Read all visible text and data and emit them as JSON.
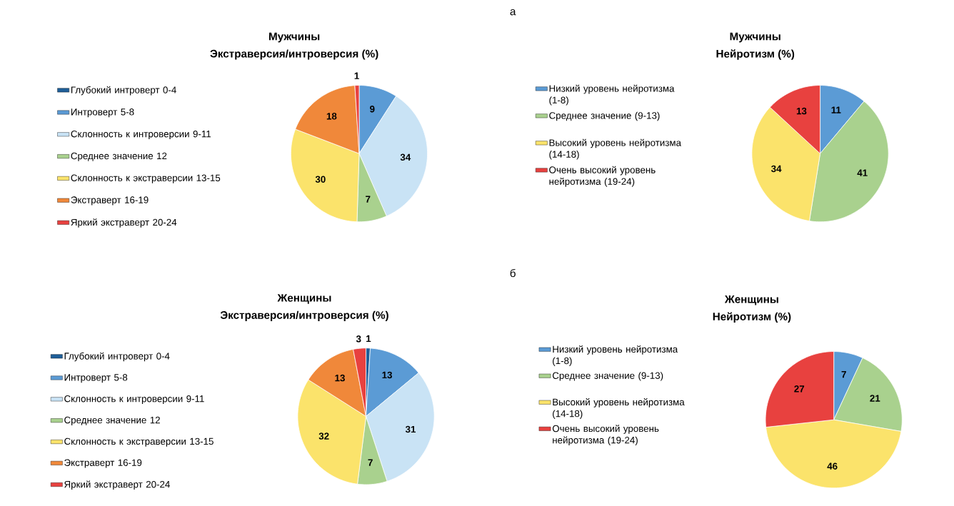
{
  "chart_data": [
    {
      "type": "pie",
      "title": "Мужчины",
      "subtitle": "Экстраверсия/интроверсия (%)",
      "annotations": [
        "а"
      ],
      "legend": "left",
      "categories": [
        "Глубокий интроверт 0-4",
        "Интроверт 5-8",
        "Склонность к интроверсии 9-11",
        "Среднее значение 12",
        "Склонность к экстраверсии 13-15",
        "Экстраверт 16-19",
        "Яркий экстраверт 20-24"
      ],
      "values": [
        null,
        9,
        34,
        7,
        30,
        18,
        1
      ],
      "value_labels": [
        null,
        "9",
        "34",
        "7",
        "30",
        "18",
        "1"
      ],
      "colors": [
        "#1f5f99",
        "#5b9bd5",
        "#c9e3f5",
        "#a9d18e",
        "#fbe36b",
        "#f0883a",
        "#e8413f"
      ]
    },
    {
      "type": "pie",
      "title": "Мужчины",
      "subtitle": "Нейротизм (%)",
      "legend": "left",
      "categories": [
        "Низкий уровень нейротизма (1-8)",
        "Среднее значение (9-13)",
        "Высокий уровень нейротизма (14-18)",
        "Очень высокий уровень нейротизма (19-24)"
      ],
      "values": [
        11,
        41,
        34,
        13
      ],
      "value_labels": [
        "11",
        "41",
        "34",
        "13"
      ],
      "colors": [
        "#5b9bd5",
        "#a9d18e",
        "#fbe36b",
        "#e8413f"
      ]
    },
    {
      "type": "pie",
      "title": "Женщины",
      "subtitle": "Экстраверсия/интроверсия (%)",
      "annotations": [
        "б"
      ],
      "legend": "left",
      "categories": [
        "Глубокий интроверт 0-4",
        "Интроверт 5-8",
        "Склонность к интроверсии 9-11",
        "Среднее значение 12",
        "Склонность к экстраверсии 13-15",
        "Экстраверт 16-19",
        "Яркий экстраверт 20-24"
      ],
      "values": [
        1,
        13,
        31,
        7,
        32,
        13,
        3
      ],
      "value_labels": [
        "1",
        "13",
        "31",
        "7",
        "32",
        "13",
        "3"
      ],
      "colors": [
        "#1f5f99",
        "#5b9bd5",
        "#c9e3f5",
        "#a9d18e",
        "#fbe36b",
        "#f0883a",
        "#e8413f"
      ]
    },
    {
      "type": "pie",
      "title": "Женщины",
      "subtitle": "Нейротизм (%)",
      "legend": "left",
      "categories": [
        "Низкий уровень нейротизма (1-8)",
        "Среднее значение (9-13)",
        "Высокий уровень нейротизма (14-18)",
        "Очень высокий уровень нейротизма (19-24)"
      ],
      "values": [
        7,
        21,
        46,
        27
      ],
      "value_labels": [
        "7",
        "21",
        "46",
        "27"
      ],
      "colors": [
        "#5b9bd5",
        "#a9d18e",
        "#fbe36b",
        "#e8413f"
      ]
    }
  ]
}
